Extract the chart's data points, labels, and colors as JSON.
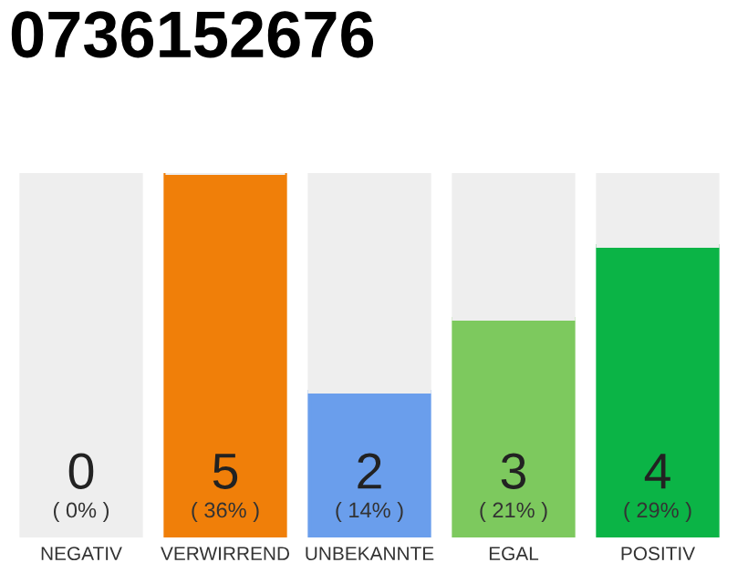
{
  "chart_data": {
    "type": "bar",
    "title": "0736152676",
    "stacked": true,
    "ylim": [
      0,
      5
    ],
    "tick_labels": "x",
    "grid": false,
    "categories": [
      "NEGATIV",
      "VERWIRREND",
      "UNBEKANNTE",
      "EGAL",
      "POSITIV"
    ],
    "series": [
      {
        "colors": [
          "#e8203a",
          "#f07f09",
          "#6a9eec",
          "#7dc95e",
          "#0bb446"
        ],
        "values": [
          0,
          5,
          2,
          3,
          4
        ],
        "value_labels": [
          "0\n( 0% )",
          "5\n( 36% )",
          "2\n( 14% )",
          "3\n( 21% )",
          "4\n( 29% )"
        ]
      },
      {
        "color": "#eeeeee",
        "values": [
          5,
          0,
          3,
          2,
          1
        ]
      }
    ]
  }
}
